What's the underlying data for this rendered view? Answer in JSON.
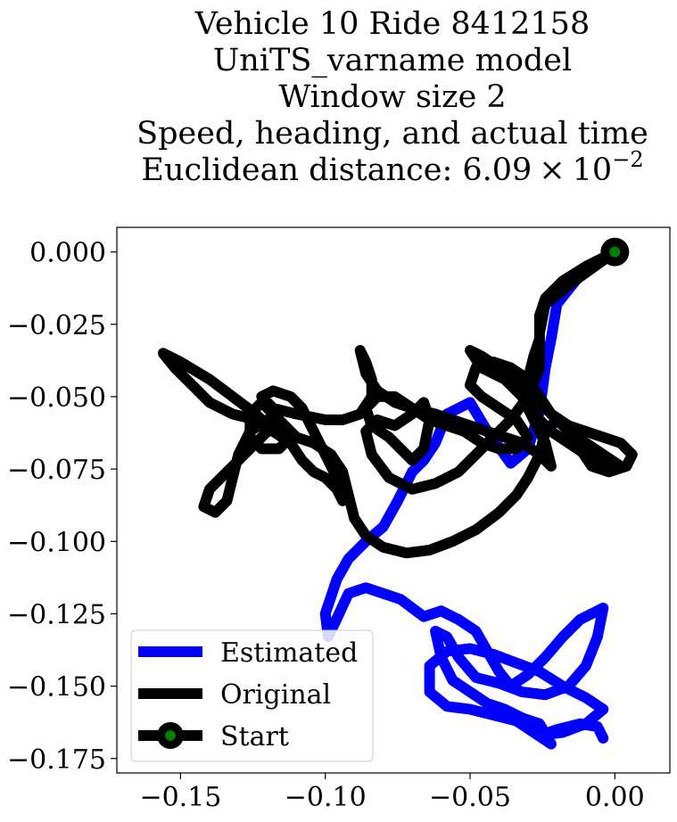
{
  "chart_data": {
    "type": "line",
    "title_lines": [
      "Vehicle 10 Ride 8412158",
      "UniTS_varname model",
      "Window size 2",
      "Speed, heading, and actual time"
    ],
    "title_metric": {
      "prefix": "Euclidean distance: ",
      "mantissa": "6.09",
      "times": "×",
      "base": "10",
      "exponent": "−2"
    },
    "xlim": [
      -0.172,
      0.019
    ],
    "ylim": [
      -0.18,
      0.0085
    ],
    "xticks": [
      {
        "value": -0.15,
        "label": "−0.15"
      },
      {
        "value": -0.1,
        "label": "−0.10"
      },
      {
        "value": -0.05,
        "label": "−0.05"
      },
      {
        "value": 0.0,
        "label": "0.00"
      }
    ],
    "yticks": [
      {
        "value": 0.0,
        "label": "0.000"
      },
      {
        "value": -0.025,
        "label": "−0.025"
      },
      {
        "value": -0.05,
        "label": "−0.050"
      },
      {
        "value": -0.075,
        "label": "−0.075"
      },
      {
        "value": -0.1,
        "label": "−0.100"
      },
      {
        "value": -0.125,
        "label": "−0.125"
      },
      {
        "value": -0.15,
        "label": "−0.150"
      },
      {
        "value": -0.175,
        "label": "−0.175"
      }
    ],
    "grid": false,
    "legend_position": "lower-left",
    "series": [
      {
        "name": "Estimated",
        "color": "#0000ff",
        "points": [
          [
            0.0,
            0.0
          ],
          [
            -0.012,
            -0.008
          ],
          [
            -0.02,
            -0.018
          ],
          [
            -0.022,
            -0.03
          ],
          [
            -0.024,
            -0.04
          ],
          [
            -0.026,
            -0.055
          ],
          [
            -0.03,
            -0.068
          ],
          [
            -0.036,
            -0.073
          ],
          [
            -0.044,
            -0.062
          ],
          [
            -0.05,
            -0.052
          ],
          [
            -0.058,
            -0.056
          ],
          [
            -0.062,
            -0.066
          ],
          [
            -0.066,
            -0.072
          ],
          [
            -0.07,
            -0.076
          ],
          [
            -0.075,
            -0.086
          ],
          [
            -0.08,
            -0.095
          ],
          [
            -0.086,
            -0.1
          ],
          [
            -0.092,
            -0.106
          ],
          [
            -0.096,
            -0.113
          ],
          [
            -0.1,
            -0.125
          ],
          [
            -0.099,
            -0.133
          ],
          [
            -0.092,
            -0.118
          ],
          [
            -0.086,
            -0.116
          ],
          [
            -0.08,
            -0.118
          ],
          [
            -0.074,
            -0.12
          ],
          [
            -0.066,
            -0.126
          ],
          [
            -0.06,
            -0.124
          ],
          [
            -0.054,
            -0.127
          ],
          [
            -0.048,
            -0.131
          ],
          [
            -0.044,
            -0.138
          ],
          [
            -0.04,
            -0.145
          ],
          [
            -0.036,
            -0.15
          ],
          [
            -0.03,
            -0.146
          ],
          [
            -0.024,
            -0.14
          ],
          [
            -0.018,
            -0.133
          ],
          [
            -0.012,
            -0.127
          ],
          [
            -0.004,
            -0.123
          ],
          [
            -0.006,
            -0.133
          ],
          [
            -0.01,
            -0.143
          ],
          [
            -0.016,
            -0.15
          ],
          [
            -0.024,
            -0.153
          ],
          [
            -0.032,
            -0.152
          ],
          [
            -0.04,
            -0.149
          ],
          [
            -0.048,
            -0.147
          ],
          [
            -0.054,
            -0.14
          ],
          [
            -0.058,
            -0.133
          ],
          [
            -0.062,
            -0.131
          ],
          [
            -0.06,
            -0.14
          ],
          [
            -0.056,
            -0.148
          ],
          [
            -0.05,
            -0.152
          ],
          [
            -0.044,
            -0.156
          ],
          [
            -0.038,
            -0.158
          ],
          [
            -0.032,
            -0.161
          ],
          [
            -0.026,
            -0.163
          ],
          [
            -0.022,
            -0.17
          ],
          [
            -0.028,
            -0.166
          ],
          [
            -0.034,
            -0.162
          ],
          [
            -0.042,
            -0.16
          ],
          [
            -0.05,
            -0.158
          ],
          [
            -0.058,
            -0.157
          ],
          [
            -0.064,
            -0.152
          ],
          [
            -0.064,
            -0.143
          ],
          [
            -0.058,
            -0.138
          ],
          [
            -0.05,
            -0.137
          ],
          [
            -0.042,
            -0.139
          ],
          [
            -0.034,
            -0.142
          ],
          [
            -0.026,
            -0.145
          ],
          [
            -0.018,
            -0.15
          ],
          [
            -0.01,
            -0.154
          ],
          [
            -0.004,
            -0.158
          ],
          [
            -0.01,
            -0.163
          ],
          [
            -0.018,
            -0.166
          ],
          [
            -0.026,
            -0.167
          ],
          [
            -0.02,
            -0.165
          ],
          [
            -0.012,
            -0.163
          ],
          [
            -0.006,
            -0.164
          ],
          [
            -0.004,
            -0.168
          ]
        ]
      },
      {
        "name": "Original",
        "color": "#000000",
        "points": [
          [
            0.0,
            0.0
          ],
          [
            -0.014,
            -0.01
          ],
          [
            -0.024,
            -0.018
          ],
          [
            -0.026,
            -0.028
          ],
          [
            -0.026,
            -0.04
          ],
          [
            -0.03,
            -0.05
          ],
          [
            -0.036,
            -0.058
          ],
          [
            -0.042,
            -0.064
          ],
          [
            -0.048,
            -0.07
          ],
          [
            -0.054,
            -0.076
          ],
          [
            -0.062,
            -0.08
          ],
          [
            -0.07,
            -0.082
          ],
          [
            -0.078,
            -0.078
          ],
          [
            -0.084,
            -0.07
          ],
          [
            -0.086,
            -0.062
          ],
          [
            -0.082,
            -0.058
          ],
          [
            -0.076,
            -0.06
          ],
          [
            -0.07,
            -0.056
          ],
          [
            -0.066,
            -0.052
          ],
          [
            -0.064,
            -0.058
          ],
          [
            -0.066,
            -0.068
          ],
          [
            -0.07,
            -0.072
          ],
          [
            -0.074,
            -0.068
          ],
          [
            -0.078,
            -0.064
          ],
          [
            -0.084,
            -0.06
          ],
          [
            -0.086,
            -0.054
          ],
          [
            -0.082,
            -0.05
          ],
          [
            -0.076,
            -0.05
          ],
          [
            -0.07,
            -0.054
          ],
          [
            -0.064,
            -0.058
          ],
          [
            -0.058,
            -0.06
          ],
          [
            -0.052,
            -0.062
          ],
          [
            -0.046,
            -0.066
          ],
          [
            -0.04,
            -0.068
          ],
          [
            -0.034,
            -0.068
          ],
          [
            -0.03,
            -0.064
          ],
          [
            -0.034,
            -0.058
          ],
          [
            -0.04,
            -0.054
          ],
          [
            -0.046,
            -0.05
          ],
          [
            -0.05,
            -0.046
          ],
          [
            -0.048,
            -0.04
          ],
          [
            -0.042,
            -0.038
          ],
          [
            -0.036,
            -0.04
          ],
          [
            -0.03,
            -0.044
          ],
          [
            -0.026,
            -0.05
          ],
          [
            -0.022,
            -0.056
          ],
          [
            -0.016,
            -0.06
          ],
          [
            -0.01,
            -0.062
          ],
          [
            -0.004,
            -0.064
          ],
          [
            0.002,
            -0.066
          ],
          [
            0.006,
            -0.07
          ],
          [
            0.004,
            -0.074
          ],
          [
            -0.002,
            -0.076
          ],
          [
            -0.008,
            -0.074
          ],
          [
            -0.012,
            -0.068
          ],
          [
            -0.016,
            -0.062
          ],
          [
            -0.02,
            -0.058
          ],
          [
            -0.024,
            -0.062
          ],
          [
            -0.026,
            -0.07
          ],
          [
            -0.03,
            -0.078
          ],
          [
            -0.034,
            -0.084
          ],
          [
            -0.04,
            -0.09
          ],
          [
            -0.048,
            -0.096
          ],
          [
            -0.056,
            -0.1
          ],
          [
            -0.064,
            -0.103
          ],
          [
            -0.072,
            -0.104
          ],
          [
            -0.08,
            -0.102
          ],
          [
            -0.086,
            -0.098
          ],
          [
            -0.09,
            -0.092
          ],
          [
            -0.092,
            -0.084
          ],
          [
            -0.094,
            -0.076
          ],
          [
            -0.098,
            -0.07
          ],
          [
            -0.104,
            -0.066
          ],
          [
            -0.11,
            -0.064
          ],
          [
            -0.114,
            -0.06
          ],
          [
            -0.118,
            -0.056
          ],
          [
            -0.122,
            -0.052
          ],
          [
            -0.126,
            -0.056
          ],
          [
            -0.126,
            -0.064
          ],
          [
            -0.122,
            -0.068
          ],
          [
            -0.116,
            -0.068
          ],
          [
            -0.112,
            -0.064
          ],
          [
            -0.116,
            -0.06
          ],
          [
            -0.12,
            -0.058
          ],
          [
            -0.126,
            -0.062
          ],
          [
            -0.13,
            -0.07
          ],
          [
            -0.132,
            -0.078
          ],
          [
            -0.134,
            -0.086
          ],
          [
            -0.138,
            -0.09
          ],
          [
            -0.142,
            -0.088
          ],
          [
            -0.14,
            -0.082
          ],
          [
            -0.134,
            -0.076
          ],
          [
            -0.128,
            -0.07
          ],
          [
            -0.122,
            -0.064
          ],
          [
            -0.118,
            -0.06
          ],
          [
            -0.124,
            -0.058
          ],
          [
            -0.132,
            -0.056
          ],
          [
            -0.14,
            -0.052
          ],
          [
            -0.146,
            -0.046
          ],
          [
            -0.152,
            -0.04
          ],
          [
            -0.156,
            -0.035
          ],
          [
            -0.15,
            -0.038
          ],
          [
            -0.14,
            -0.044
          ],
          [
            -0.132,
            -0.05
          ],
          [
            -0.124,
            -0.056
          ],
          [
            -0.118,
            -0.062
          ],
          [
            -0.112,
            -0.066
          ],
          [
            -0.108,
            -0.072
          ],
          [
            -0.104,
            -0.076
          ],
          [
            -0.1,
            -0.078
          ],
          [
            -0.096,
            -0.082
          ],
          [
            -0.094,
            -0.086
          ],
          [
            -0.096,
            -0.078
          ],
          [
            -0.1,
            -0.07
          ],
          [
            -0.104,
            -0.062
          ],
          [
            -0.108,
            -0.054
          ],
          [
            -0.112,
            -0.05
          ],
          [
            -0.118,
            -0.048
          ],
          [
            -0.122,
            -0.05
          ],
          [
            -0.118,
            -0.054
          ],
          [
            -0.11,
            -0.056
          ],
          [
            -0.1,
            -0.058
          ],
          [
            -0.094,
            -0.058
          ],
          [
            -0.088,
            -0.056
          ],
          [
            -0.084,
            -0.05
          ],
          [
            -0.084,
            -0.044
          ],
          [
            -0.086,
            -0.038
          ],
          [
            -0.088,
            -0.034
          ],
          [
            -0.086,
            -0.042
          ],
          [
            -0.082,
            -0.048
          ],
          [
            -0.076,
            -0.052
          ],
          [
            -0.07,
            -0.054
          ],
          [
            -0.062,
            -0.056
          ],
          [
            -0.056,
            -0.058
          ],
          [
            -0.05,
            -0.06
          ],
          [
            -0.044,
            -0.062
          ],
          [
            -0.038,
            -0.064
          ],
          [
            -0.032,
            -0.066
          ],
          [
            -0.026,
            -0.07
          ],
          [
            -0.022,
            -0.074
          ],
          [
            -0.024,
            -0.066
          ],
          [
            -0.028,
            -0.058
          ],
          [
            -0.032,
            -0.05
          ],
          [
            -0.038,
            -0.044
          ],
          [
            -0.046,
            -0.04
          ],
          [
            -0.05,
            -0.034
          ],
          [
            -0.046,
            -0.036
          ],
          [
            -0.04,
            -0.04
          ],
          [
            -0.034,
            -0.044
          ],
          [
            -0.028,
            -0.05
          ],
          [
            -0.022,
            -0.056
          ],
          [
            -0.016,
            -0.062
          ],
          [
            -0.01,
            -0.066
          ],
          [
            -0.004,
            -0.07
          ],
          [
            0.002,
            -0.074
          ],
          [
            -0.004,
            -0.072
          ],
          [
            -0.01,
            -0.07
          ],
          [
            -0.016,
            -0.066
          ],
          [
            -0.022,
            -0.062
          ],
          [
            -0.026,
            -0.058
          ],
          [
            -0.03,
            -0.052
          ],
          [
            -0.03,
            -0.044
          ],
          [
            -0.028,
            -0.036
          ],
          [
            -0.026,
            -0.03
          ],
          [
            -0.026,
            -0.022
          ],
          [
            -0.024,
            -0.016
          ],
          [
            -0.018,
            -0.01
          ],
          [
            -0.01,
            -0.005
          ],
          [
            0.0,
            0.0
          ]
        ]
      }
    ],
    "start_point": {
      "name": "Start",
      "x": 0.0,
      "y": 0.0,
      "outer_color": "#000000",
      "inner_color": "#008000"
    }
  }
}
